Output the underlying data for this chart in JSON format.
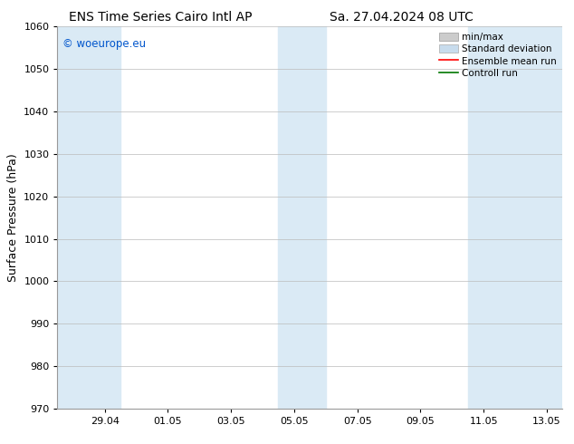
{
  "title_left": "ENS Time Series Cairo Intl AP",
  "title_right": "Sa. 27.04.2024 08 UTC",
  "ylabel": "Surface Pressure (hPa)",
  "watermark": "© woeurope.eu",
  "watermark_color": "#0055cc",
  "ylim": [
    970,
    1060
  ],
  "yticks": [
    970,
    980,
    990,
    1000,
    1010,
    1020,
    1030,
    1040,
    1050,
    1060
  ],
  "xtick_labels": [
    "29.04",
    "01.05",
    "03.05",
    "05.05",
    "07.05",
    "09.05",
    "11.05",
    "13.05"
  ],
  "xtick_positions": [
    1,
    3,
    5,
    7,
    9,
    11,
    13,
    15
  ],
  "shade_bands": [
    {
      "x_start": -0.5,
      "x_end": 1.5
    },
    {
      "x_start": 6.5,
      "x_end": 8.0
    },
    {
      "x_start": 12.5,
      "x_end": 15.5
    }
  ],
  "shade_color": "#daeaf5",
  "xlim": [
    -0.5,
    15.5
  ],
  "background_color": "#ffffff",
  "plot_bg_color": "#ffffff",
  "grid_color": "#bbbbbb",
  "legend_items": [
    {
      "label": "min/max",
      "color": "#aaaaaa",
      "type": "hatch"
    },
    {
      "label": "Standard deviation",
      "color": "#c8dced",
      "type": "fill"
    },
    {
      "label": "Ensemble mean run",
      "color": "#ff0000",
      "type": "line"
    },
    {
      "label": "Controll run",
      "color": "#007700",
      "type": "line"
    }
  ],
  "title_fontsize": 10,
  "tick_fontsize": 8,
  "ylabel_fontsize": 9,
  "legend_fontsize": 7.5
}
